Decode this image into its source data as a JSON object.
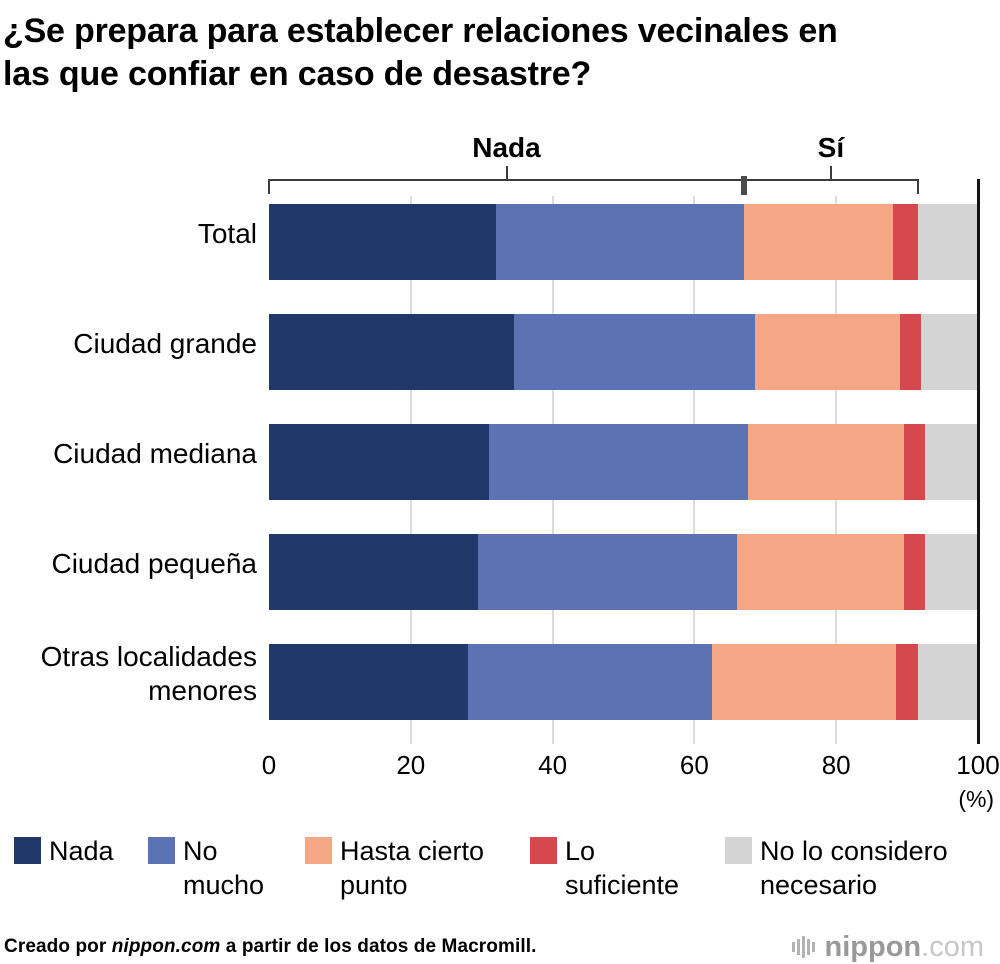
{
  "chart_data": {
    "type": "bar",
    "orientation": "horizontal",
    "stacked": true,
    "title": "¿Se prepara para establecer relaciones vecinales en las que confiar en caso de desastre?",
    "title_lines": {
      "line1": "¿Se prepara para establecer relaciones vecinales en",
      "line2": "las que confiar en caso de desastre?"
    },
    "unit_label": "(%)",
    "xlim": [
      0,
      100
    ],
    "xticks": [
      0,
      20,
      40,
      60,
      80,
      100
    ],
    "grid": true,
    "legend_position": "bottom",
    "categories": [
      "Total",
      "Ciudad grande",
      "Ciudad mediana",
      "Ciudad pequeña",
      "Otras localidades menores"
    ],
    "series": [
      {
        "name": "Nada",
        "color": "#21386b",
        "values": [
          32,
          34.5,
          31,
          29.5,
          28
        ]
      },
      {
        "name": "No mucho",
        "color": "#5b73b2",
        "values": [
          35,
          34,
          36.5,
          36.5,
          34.5
        ]
      },
      {
        "name": "Hasta cierto punto",
        "color": "#f4a685",
        "values": [
          21,
          20.5,
          22,
          23.5,
          26
        ]
      },
      {
        "name": "Lo suficiente",
        "color": "#d5494e",
        "values": [
          3.5,
          3,
          3,
          3,
          3
        ]
      },
      {
        "name": "No lo considero necesario",
        "color": "#d4d4d4",
        "values": [
          8.5,
          8,
          7.5,
          7.5,
          8.5
        ]
      }
    ],
    "annotations": {
      "groups": [
        {
          "label": "Nada",
          "from": 0,
          "to": 67
        },
        {
          "label": "Sí",
          "from": 67,
          "to": 91.5
        }
      ]
    }
  },
  "footer": {
    "source_prefix": "Creado por ",
    "source_brand": "nippon.com",
    "source_suffix": " a partir de los datos de Macromill.",
    "logo_text": "nippon",
    "logo_suffix": ".com"
  }
}
